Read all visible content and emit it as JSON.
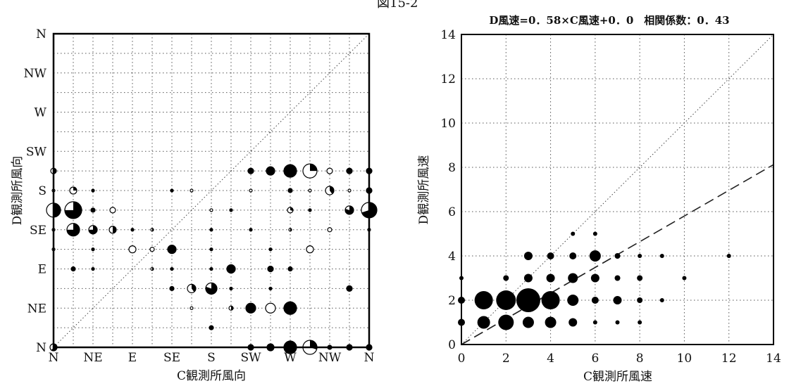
{
  "figure_number": "図15-2",
  "chart_data": [
    {
      "type": "scatter",
      "subtype": "bubble-direction-matrix",
      "xlabel": "C観測所風向",
      "ylabel": "D観測所風向",
      "x_tick_labels": [
        "N",
        "NE",
        "E",
        "SE",
        "S",
        "SW",
        "W",
        "NW",
        "N"
      ],
      "y_tick_labels": [
        "N",
        "NE",
        "E",
        "SE",
        "S",
        "SW",
        "W",
        "NW",
        "N"
      ],
      "grid": true,
      "reference_line": "diagonal (y = x)",
      "points": [
        {
          "x": 0,
          "y": 0,
          "r": 5,
          "f": 0.6
        },
        {
          "x": 10,
          "y": 0,
          "r": 4,
          "f": 1
        },
        {
          "x": 11,
          "y": 0,
          "r": 5,
          "f": 1
        },
        {
          "x": 12,
          "y": 0,
          "r": 9,
          "f": 1
        },
        {
          "x": 13,
          "y": 0,
          "r": 10,
          "f": 0.3
        },
        {
          "x": 14,
          "y": 0,
          "r": 3,
          "f": 1
        },
        {
          "x": 15,
          "y": 0,
          "r": 4,
          "f": 1
        },
        {
          "x": 16,
          "y": 0,
          "r": 4,
          "f": 1
        },
        {
          "x": 8,
          "y": 1,
          "r": 3,
          "f": 1
        },
        {
          "x": 10,
          "y": 2,
          "r": 7,
          "f": 1
        },
        {
          "x": 11,
          "y": 2,
          "r": 7,
          "f": 0
        },
        {
          "x": 12,
          "y": 2,
          "r": 9,
          "f": 1
        },
        {
          "x": 9,
          "y": 2,
          "r": 3,
          "f": 0.5
        },
        {
          "x": 7,
          "y": 2,
          "r": 2,
          "f": 0
        },
        {
          "x": 6,
          "y": 3,
          "r": 3,
          "f": 1
        },
        {
          "x": 7,
          "y": 3,
          "r": 6,
          "f": 0.4
        },
        {
          "x": 8,
          "y": 3,
          "r": 8,
          "f": 0.8
        },
        {
          "x": 9,
          "y": 3,
          "r": 2,
          "f": 1
        },
        {
          "x": 11,
          "y": 3,
          "r": 2,
          "f": 1
        },
        {
          "x": 15,
          "y": 3,
          "r": 4,
          "f": 1
        },
        {
          "x": 1,
          "y": 4,
          "r": 3,
          "f": 1
        },
        {
          "x": 2,
          "y": 4,
          "r": 2,
          "f": 1
        },
        {
          "x": 5,
          "y": 4,
          "r": 2,
          "f": 0.5
        },
        {
          "x": 6,
          "y": 4,
          "r": 2,
          "f": 1
        },
        {
          "x": 8,
          "y": 4,
          "r": 2,
          "f": 1
        },
        {
          "x": 9,
          "y": 4,
          "r": 6,
          "f": 1
        },
        {
          "x": 11,
          "y": 4,
          "r": 4,
          "f": 1
        },
        {
          "x": 12,
          "y": 4,
          "r": 3,
          "f": 1
        },
        {
          "x": 0,
          "y": 5,
          "r": 2,
          "f": 0
        },
        {
          "x": 2,
          "y": 5,
          "r": 2,
          "f": 1
        },
        {
          "x": 4,
          "y": 5,
          "r": 5,
          "f": 0
        },
        {
          "x": 5,
          "y": 5,
          "r": 3,
          "f": 0
        },
        {
          "x": 6,
          "y": 5,
          "r": 6,
          "f": 1
        },
        {
          "x": 8,
          "y": 5,
          "r": 2,
          "f": 1
        },
        {
          "x": 11,
          "y": 5,
          "r": 2,
          "f": 1
        },
        {
          "x": 13,
          "y": 5,
          "r": 5,
          "f": 0
        },
        {
          "x": 0,
          "y": 6,
          "r": 2,
          "f": 0
        },
        {
          "x": 1,
          "y": 6,
          "r": 9,
          "f": 0.75
        },
        {
          "x": 2,
          "y": 6,
          "r": 6,
          "f": 0.75
        },
        {
          "x": 3,
          "y": 6,
          "r": 5,
          "f": 0.5
        },
        {
          "x": 4,
          "y": 6,
          "r": 2,
          "f": 1
        },
        {
          "x": 5,
          "y": 6,
          "r": 2,
          "f": 0.5
        },
        {
          "x": 8,
          "y": 6,
          "r": 2,
          "f": 1
        },
        {
          "x": 10,
          "y": 6,
          "r": 2,
          "f": 1
        },
        {
          "x": 12,
          "y": 6,
          "r": 2,
          "f": 0.5
        },
        {
          "x": 14,
          "y": 6,
          "r": 3,
          "f": 0
        },
        {
          "x": 16,
          "y": 6,
          "r": 2,
          "f": 0
        },
        {
          "x": 0,
          "y": 7,
          "r": 10,
          "f": 0.5
        },
        {
          "x": 1,
          "y": 7,
          "r": 12,
          "f": 0.75
        },
        {
          "x": 2,
          "y": 7,
          "r": 3,
          "f": 1
        },
        {
          "x": 3,
          "y": 7,
          "r": 4,
          "f": 0
        },
        {
          "x": 8,
          "y": 7,
          "r": 2,
          "f": 0
        },
        {
          "x": 9,
          "y": 7,
          "r": 2,
          "f": 1
        },
        {
          "x": 12,
          "y": 7,
          "r": 4,
          "f": 0.3
        },
        {
          "x": 13,
          "y": 7,
          "r": 2,
          "f": 1
        },
        {
          "x": 15,
          "y": 7,
          "r": 6,
          "f": 0.8
        },
        {
          "x": 16,
          "y": 7,
          "r": 11,
          "f": 0.7
        },
        {
          "x": 0,
          "y": 8,
          "r": 2,
          "f": 0
        },
        {
          "x": 1,
          "y": 8,
          "r": 5,
          "f": 0.25
        },
        {
          "x": 2,
          "y": 8,
          "r": 2,
          "f": 1
        },
        {
          "x": 6,
          "y": 8,
          "r": 2,
          "f": 1
        },
        {
          "x": 7,
          "y": 8,
          "r": 2,
          "f": 0
        },
        {
          "x": 10,
          "y": 8,
          "r": 2,
          "f": 0
        },
        {
          "x": 12,
          "y": 8,
          "r": 3,
          "f": 1
        },
        {
          "x": 13,
          "y": 8,
          "r": 2,
          "f": 0
        },
        {
          "x": 14,
          "y": 8,
          "r": 6,
          "f": 0.4
        },
        {
          "x": 15,
          "y": 8,
          "r": 2,
          "f": 0
        },
        {
          "x": 16,
          "y": 8,
          "r": 4,
          "f": 1
        },
        {
          "x": 0,
          "y": 9,
          "r": 4,
          "f": 0.5
        },
        {
          "x": 10,
          "y": 9,
          "r": 4,
          "f": 1
        },
        {
          "x": 11,
          "y": 9,
          "r": 6,
          "f": 1
        },
        {
          "x": 12,
          "y": 9,
          "r": 9,
          "f": 1
        },
        {
          "x": 13,
          "y": 9,
          "r": 10,
          "f": 0.25
        },
        {
          "x": 14,
          "y": 9,
          "r": 4,
          "f": 0
        },
        {
          "x": 15,
          "y": 9,
          "r": 4,
          "f": 1
        },
        {
          "x": 16,
          "y": 9,
          "r": 4,
          "f": 1
        }
      ]
    },
    {
      "type": "scatter",
      "subtype": "bubble",
      "title": "D風速=0．58×C風速+0．0　相関係数：0．43",
      "xlabel": "C観測所風速",
      "ylabel": "D観測所風速",
      "xlim": [
        0,
        14
      ],
      "ylim": [
        0,
        14
      ],
      "x_ticks": [
        0,
        2,
        4,
        6,
        8,
        10,
        12,
        14
      ],
      "y_ticks": [
        0,
        2,
        4,
        6,
        8,
        10,
        12,
        14
      ],
      "grid": true,
      "regression": {
        "slope": 0.58,
        "intercept": 0.0,
        "style": "dashed"
      },
      "reference_line": "diagonal (y = x)",
      "points": [
        {
          "x": 0,
          "y": 1,
          "r": 5
        },
        {
          "x": 0,
          "y": 2,
          "r": 5
        },
        {
          "x": 0,
          "y": 3,
          "r": 3
        },
        {
          "x": 1,
          "y": 1,
          "r": 9
        },
        {
          "x": 1,
          "y": 2,
          "r": 13
        },
        {
          "x": 2,
          "y": 1,
          "r": 11
        },
        {
          "x": 2,
          "y": 2,
          "r": 14
        },
        {
          "x": 2,
          "y": 3,
          "r": 4
        },
        {
          "x": 3,
          "y": 1,
          "r": 8
        },
        {
          "x": 3,
          "y": 2,
          "r": 17
        },
        {
          "x": 3,
          "y": 3,
          "r": 6
        },
        {
          "x": 3,
          "y": 4,
          "r": 6
        },
        {
          "x": 4,
          "y": 1,
          "r": 8
        },
        {
          "x": 4,
          "y": 2,
          "r": 13
        },
        {
          "x": 4,
          "y": 3,
          "r": 6
        },
        {
          "x": 4,
          "y": 4,
          "r": 5
        },
        {
          "x": 5,
          "y": 1,
          "r": 6
        },
        {
          "x": 5,
          "y": 2,
          "r": 8
        },
        {
          "x": 5,
          "y": 3,
          "r": 7
        },
        {
          "x": 5,
          "y": 4,
          "r": 5
        },
        {
          "x": 5,
          "y": 5,
          "r": 3
        },
        {
          "x": 6,
          "y": 1,
          "r": 3
        },
        {
          "x": 6,
          "y": 2,
          "r": 5
        },
        {
          "x": 6,
          "y": 3,
          "r": 6
        },
        {
          "x": 6,
          "y": 4,
          "r": 8
        },
        {
          "x": 6,
          "y": 5,
          "r": 3
        },
        {
          "x": 7,
          "y": 1,
          "r": 3
        },
        {
          "x": 7,
          "y": 2,
          "r": 6
        },
        {
          "x": 7,
          "y": 3,
          "r": 4
        },
        {
          "x": 7,
          "y": 4,
          "r": 4
        },
        {
          "x": 8,
          "y": 1,
          "r": 3
        },
        {
          "x": 8,
          "y": 2,
          "r": 4
        },
        {
          "x": 8,
          "y": 3,
          "r": 4
        },
        {
          "x": 8,
          "y": 4,
          "r": 3
        },
        {
          "x": 9,
          "y": 2,
          "r": 3
        },
        {
          "x": 9,
          "y": 4,
          "r": 3
        },
        {
          "x": 10,
          "y": 3,
          "r": 3
        },
        {
          "x": 12,
          "y": 4,
          "r": 3
        }
      ]
    }
  ]
}
